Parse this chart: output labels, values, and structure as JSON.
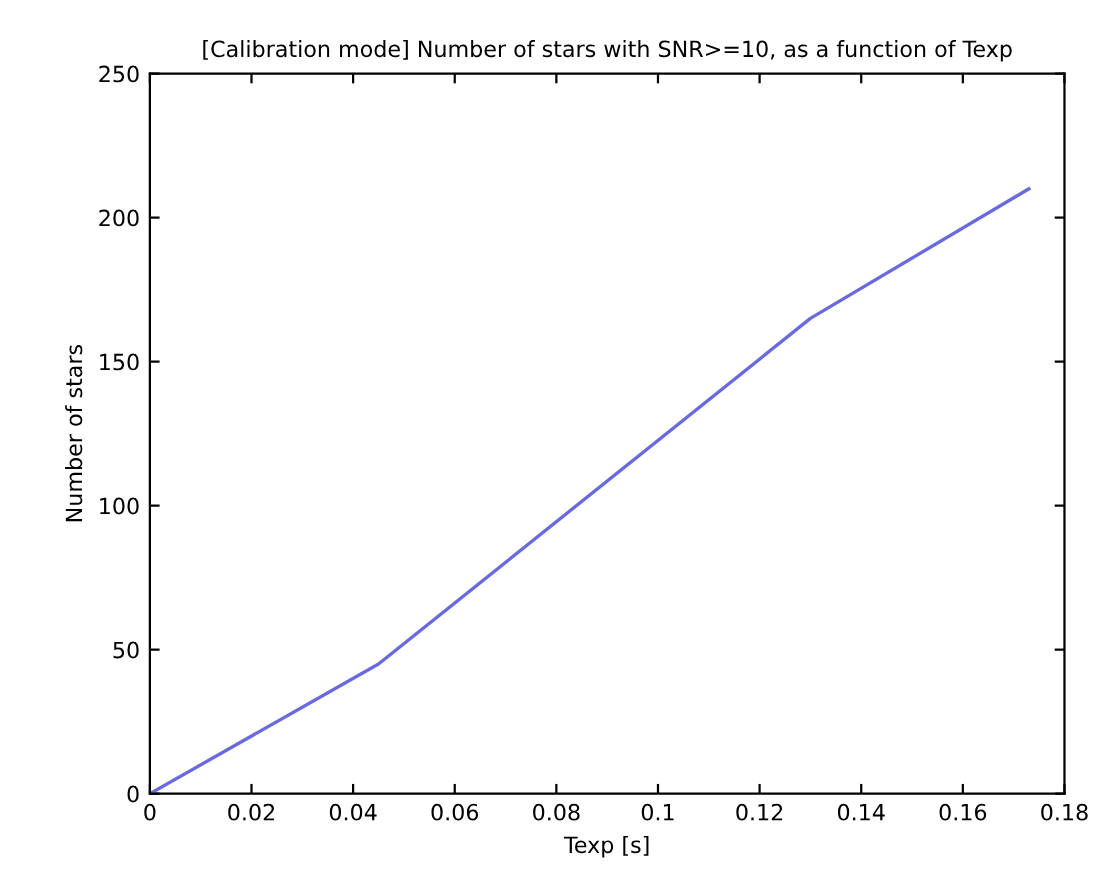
{
  "chart_data": {
    "type": "line",
    "title": "[Calibration mode] Number of stars with SNR>=10, as a function of Texp",
    "xlabel": "Texp [s]",
    "ylabel": "Number of stars",
    "x": [
      0,
      0.045,
      0.13,
      0.173
    ],
    "series": [
      {
        "color": "#6a6ae0",
        "values": [
          0,
          45,
          165,
          210
        ]
      }
    ],
    "xlim": [
      0,
      0.18
    ],
    "xticks": [
      0,
      0.02,
      0.04,
      0.06,
      0.08,
      0.1,
      0.12,
      0.14,
      0.16,
      0.18
    ],
    "ylim": [
      0,
      250
    ],
    "yticks": [
      0,
      50,
      100,
      150,
      200,
      250
    ],
    "grid": false,
    "marker": "none",
    "line_style": "solid"
  }
}
